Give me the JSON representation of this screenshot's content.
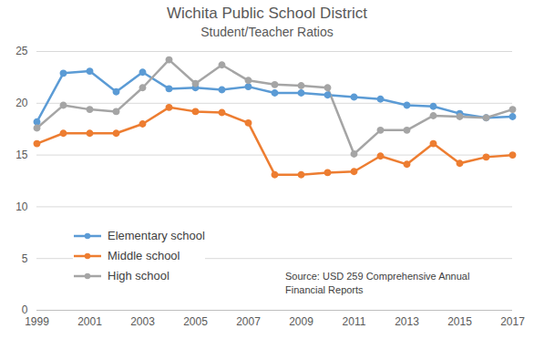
{
  "chart_data": {
    "type": "line",
    "title": "Wichita Public School District",
    "subtitle": "Student/Teacher Ratios",
    "x": [
      1999,
      2000,
      2001,
      2002,
      2003,
      2004,
      2005,
      2006,
      2007,
      2008,
      2009,
      2010,
      2011,
      2012,
      2013,
      2014,
      2015,
      2016,
      2017
    ],
    "series": [
      {
        "name": "Elementary school",
        "color": "#5b9bd5",
        "values": [
          18.2,
          22.9,
          23.1,
          21.1,
          23.0,
          21.4,
          21.5,
          21.3,
          21.6,
          21.0,
          21.0,
          20.8,
          20.6,
          20.4,
          19.8,
          19.7,
          19.0,
          18.6,
          18.7
        ]
      },
      {
        "name": "Middle school",
        "color": "#ed7d31",
        "values": [
          16.1,
          17.1,
          17.1,
          17.1,
          18.0,
          19.6,
          19.2,
          19.1,
          18.1,
          13.1,
          13.1,
          13.3,
          13.4,
          14.9,
          14.1,
          16.1,
          14.2,
          14.8,
          15.0
        ]
      },
      {
        "name": "High school",
        "color": "#a5a5a5",
        "values": [
          17.6,
          19.8,
          19.4,
          19.2,
          21.5,
          24.2,
          21.9,
          23.7,
          22.2,
          21.8,
          21.7,
          21.5,
          15.1,
          17.4,
          17.4,
          18.8,
          18.7,
          18.6,
          19.4
        ]
      }
    ],
    "xlim": [
      1999,
      2017
    ],
    "xticks": [
      1999,
      2001,
      2003,
      2005,
      2007,
      2009,
      2011,
      2013,
      2015,
      2017
    ],
    "ylim": [
      0,
      25
    ],
    "yticks": [
      0,
      5,
      10,
      15,
      20,
      25
    ],
    "grid": true,
    "legend": "lower left",
    "marker": "circle",
    "annotations": [
      "Source: USD 259 Comprehensive Annual Financial Reports"
    ]
  }
}
